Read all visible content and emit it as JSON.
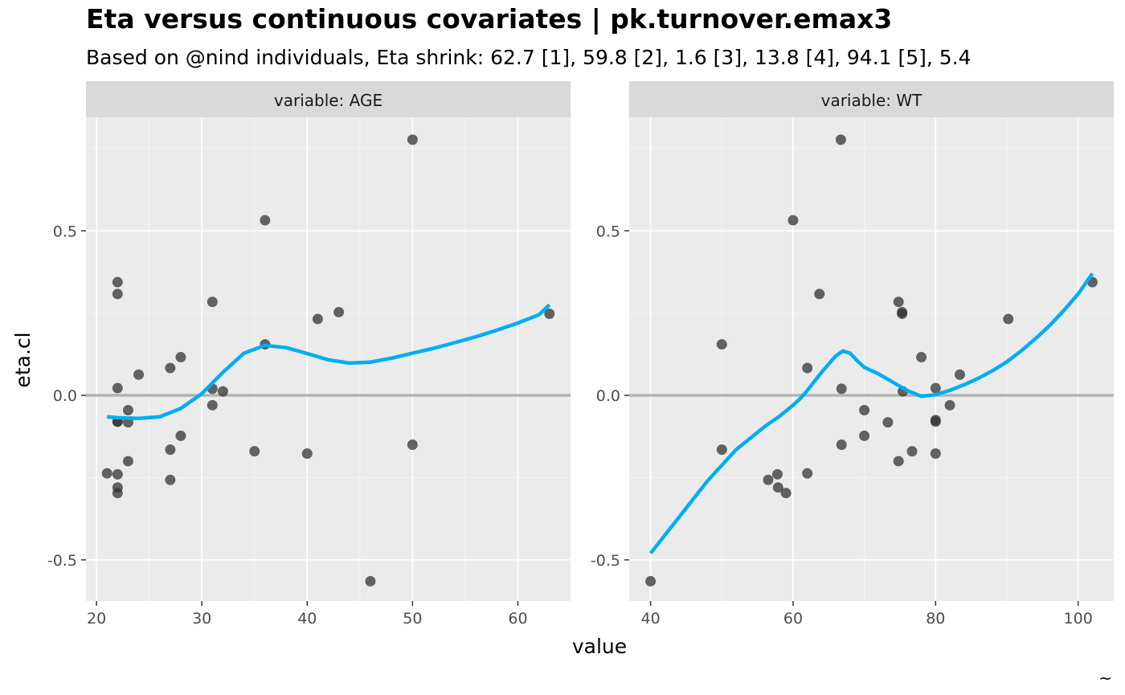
{
  "title": "Eta versus continuous covariates | pk.turnover.emax3",
  "subtitle": "Based on @nind individuals, Eta shrink: 62.7 [1], 59.8 [2], 1.6 [3], 13.8 [4], 94.1 [5], 5.4",
  "caption": "~",
  "chart_data": [
    {
      "type": "scatter",
      "panel_label": "variable: AGE",
      "xlabel": "value",
      "ylabel": "eta.cl",
      "xlim": [
        19,
        65
      ],
      "ylim": [
        -0.625,
        0.845
      ],
      "x_ticks": [
        20,
        30,
        40,
        50,
        60
      ],
      "y_ticks": [
        -0.5,
        0.0,
        0.5
      ],
      "y_tick_labels": [
        "-0.5",
        "0.0",
        "0.5"
      ],
      "reference_line_y": 0,
      "grid": true,
      "colors": {
        "points": "#333333",
        "smooth": "#00AEEF",
        "reference": "#b3b3b3"
      },
      "points": [
        [
          21,
          -0.237
        ],
        [
          22,
          0.344
        ],
        [
          22,
          0.308
        ],
        [
          22,
          0.022
        ],
        [
          22,
          -0.08
        ],
        [
          22,
          -0.08
        ],
        [
          22,
          -0.24
        ],
        [
          22,
          -0.28
        ],
        [
          22,
          -0.297
        ],
        [
          23,
          -0.045
        ],
        [
          23,
          -0.082
        ],
        [
          23,
          -0.2
        ],
        [
          24,
          0.063
        ],
        [
          27,
          0.083
        ],
        [
          27,
          -0.165
        ],
        [
          27,
          -0.257
        ],
        [
          28,
          0.116
        ],
        [
          28,
          -0.123
        ],
        [
          31,
          0.284
        ],
        [
          31,
          0.02
        ],
        [
          31,
          -0.03
        ],
        [
          32,
          0.012
        ],
        [
          35,
          -0.17
        ],
        [
          36,
          0.532
        ],
        [
          36,
          0.155
        ],
        [
          40,
          -0.177
        ],
        [
          41,
          0.232
        ],
        [
          43,
          0.253
        ],
        [
          46,
          -0.565
        ],
        [
          50,
          0.777
        ],
        [
          50,
          -0.15
        ],
        [
          63,
          0.248
        ]
      ],
      "smooth": [
        [
          21,
          -0.065
        ],
        [
          22,
          -0.068
        ],
        [
          24,
          -0.07
        ],
        [
          26,
          -0.065
        ],
        [
          28,
          -0.04
        ],
        [
          30,
          0.005
        ],
        [
          32,
          0.07
        ],
        [
          34,
          0.128
        ],
        [
          36,
          0.152
        ],
        [
          38,
          0.145
        ],
        [
          40,
          0.127
        ],
        [
          42,
          0.108
        ],
        [
          44,
          0.098
        ],
        [
          46,
          0.101
        ],
        [
          48,
          0.113
        ],
        [
          50,
          0.128
        ],
        [
          52,
          0.143
        ],
        [
          54,
          0.16
        ],
        [
          56,
          0.178
        ],
        [
          58,
          0.198
        ],
        [
          60,
          0.22
        ],
        [
          62,
          0.245
        ],
        [
          63,
          0.275
        ]
      ]
    },
    {
      "type": "scatter",
      "panel_label": "variable: WT",
      "xlabel": "value",
      "ylabel": "eta.cl",
      "xlim": [
        37,
        105
      ],
      "ylim": [
        -0.625,
        0.845
      ],
      "x_ticks": [
        40,
        60,
        80,
        100
      ],
      "y_ticks": [
        -0.5,
        0.0,
        0.5
      ],
      "y_tick_labels": [
        "-0.5",
        "0.0",
        "0.5"
      ],
      "reference_line_y": 0,
      "grid": true,
      "colors": {
        "points": "#333333",
        "smooth": "#00AEEF",
        "reference": "#b3b3b3"
      },
      "points": [
        [
          40,
          -0.565
        ],
        [
          50,
          0.155
        ],
        [
          50,
          -0.165
        ],
        [
          56.5,
          -0.257
        ],
        [
          57.8,
          -0.24
        ],
        [
          57.9,
          -0.28
        ],
        [
          59,
          -0.297
        ],
        [
          60,
          0.532
        ],
        [
          62,
          0.083
        ],
        [
          62,
          -0.237
        ],
        [
          63.7,
          0.308
        ],
        [
          66.7,
          0.777
        ],
        [
          66.8,
          0.02
        ],
        [
          66.8,
          -0.15
        ],
        [
          70,
          -0.045
        ],
        [
          70,
          -0.123
        ],
        [
          73.3,
          -0.082
        ],
        [
          74.8,
          0.284
        ],
        [
          74.8,
          -0.2
        ],
        [
          75.3,
          0.253
        ],
        [
          75.3,
          0.248
        ],
        [
          75.4,
          0.012
        ],
        [
          76.7,
          -0.17
        ],
        [
          78,
          0.116
        ],
        [
          80,
          0.022
        ],
        [
          80,
          -0.08
        ],
        [
          80,
          -0.075
        ],
        [
          80,
          -0.177
        ],
        [
          82,
          -0.03
        ],
        [
          83.4,
          0.063
        ],
        [
          90.2,
          0.232
        ],
        [
          102,
          0.344
        ]
      ],
      "smooth": [
        [
          40,
          -0.48
        ],
        [
          44,
          -0.37
        ],
        [
          48,
          -0.26
        ],
        [
          52,
          -0.165
        ],
        [
          56,
          -0.095
        ],
        [
          58,
          -0.065
        ],
        [
          60,
          -0.03
        ],
        [
          61,
          -0.01
        ],
        [
          62,
          0.015
        ],
        [
          64,
          0.07
        ],
        [
          66,
          0.12
        ],
        [
          67,
          0.135
        ],
        [
          68,
          0.128
        ],
        [
          69,
          0.105
        ],
        [
          70,
          0.085
        ],
        [
          72,
          0.065
        ],
        [
          74,
          0.04
        ],
        [
          76,
          0.015
        ],
        [
          78,
          -0.003
        ],
        [
          80,
          0.002
        ],
        [
          82,
          0.015
        ],
        [
          84,
          0.032
        ],
        [
          86,
          0.052
        ],
        [
          88,
          0.075
        ],
        [
          90,
          0.102
        ],
        [
          92,
          0.135
        ],
        [
          94,
          0.172
        ],
        [
          96,
          0.212
        ],
        [
          98,
          0.258
        ],
        [
          100,
          0.308
        ],
        [
          102,
          0.37
        ]
      ]
    }
  ]
}
